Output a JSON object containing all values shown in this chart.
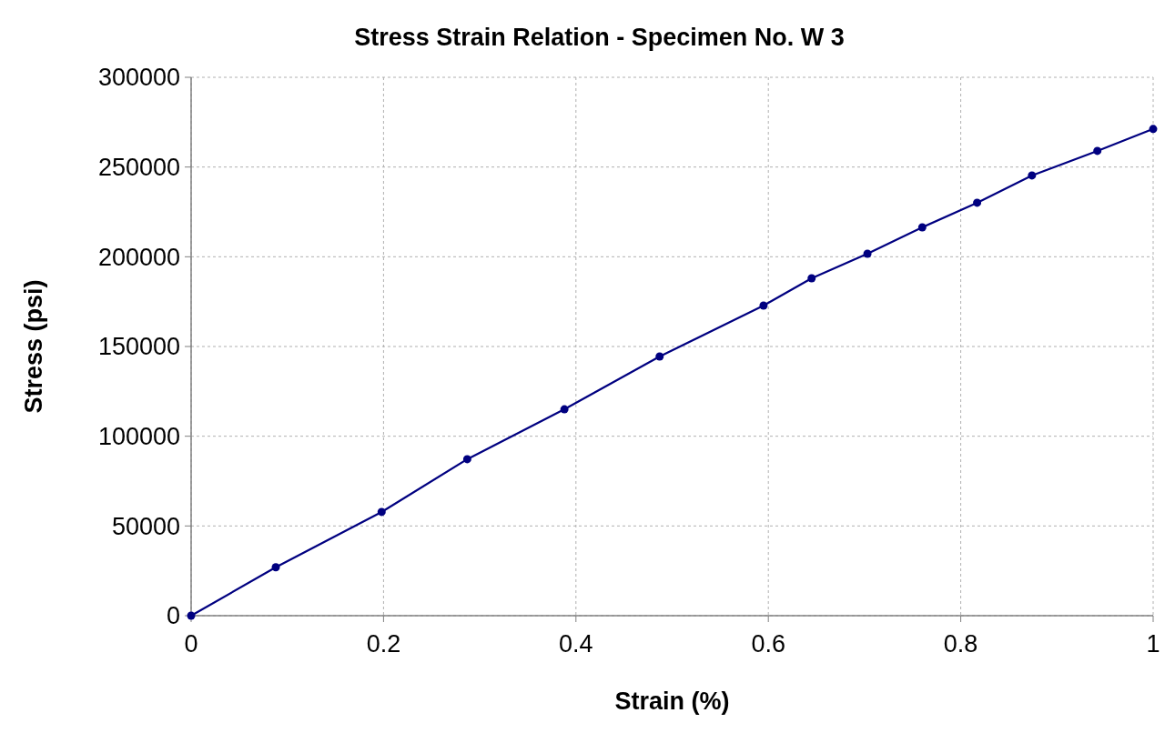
{
  "chart_data": {
    "type": "line",
    "title": "Stress Strain Relation - Specimen No. W 3",
    "xlabel": "Strain (%)",
    "ylabel": "Stress (psi)",
    "x": [
      0,
      0.088,
      0.198,
      0.287,
      0.388,
      0.487,
      0.595,
      0.645,
      0.703,
      0.76,
      0.817,
      0.874,
      0.942,
      1.0
    ],
    "series": [
      {
        "color": "#000080",
        "values": [
          0,
          27000,
          57800,
          87200,
          115000,
          144400,
          172800,
          188000,
          201700,
          216400,
          230100,
          245300,
          259000,
          271200
        ]
      }
    ],
    "xlim": [
      0,
      1
    ],
    "xticks": [
      0,
      0.2,
      0.4,
      0.6,
      0.8,
      1
    ],
    "ylim": [
      0,
      300000
    ],
    "yticks": [
      0,
      50000,
      100000,
      150000,
      200000,
      250000,
      300000
    ],
    "grid": true,
    "marker": "circle",
    "line_style": "solid"
  }
}
